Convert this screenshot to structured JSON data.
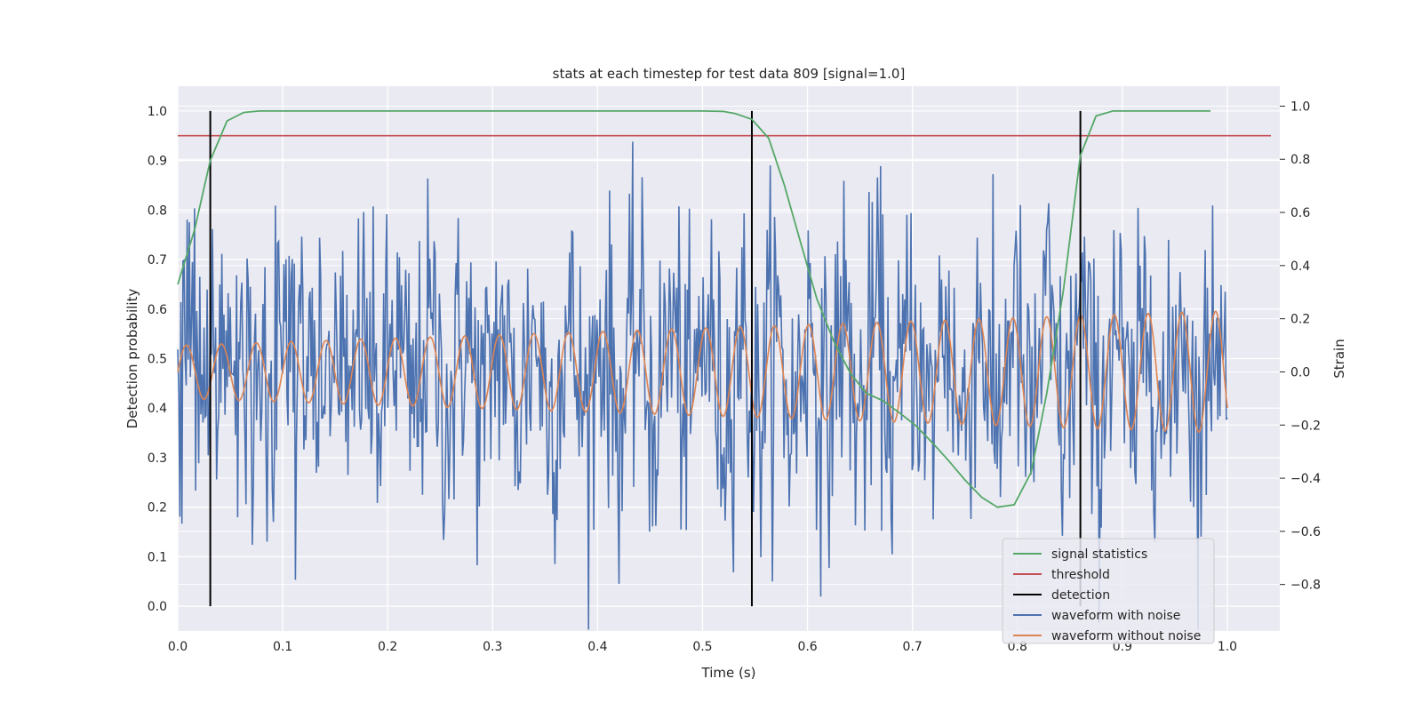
{
  "chart_data": {
    "type": "line",
    "title": "stats at each timestep for test data 809 [signal=1.0]",
    "xlabel": "Time (s)",
    "ylabel": "Detection probability",
    "ylabel_right": "Strain",
    "xlim": [
      0.0,
      1.05
    ],
    "ylim": [
      -0.05,
      1.05
    ],
    "ylim_right": [
      -0.975,
      1.075
    ],
    "xticks": [
      "0.0",
      "0.1",
      "0.2",
      "0.3",
      "0.4",
      "0.5",
      "0.6",
      "0.7",
      "0.8",
      "0.9",
      "1.0"
    ],
    "yticks": [
      "0.0",
      "0.1",
      "0.2",
      "0.3",
      "0.4",
      "0.5",
      "0.6",
      "0.7",
      "0.8",
      "0.9",
      "1.0"
    ],
    "yticks_right": [
      "−0.8",
      "−0.6",
      "−0.4",
      "−0.2",
      "0.0",
      "0.2",
      "0.4",
      "0.6",
      "0.8",
      "1.0"
    ],
    "grid": true,
    "legend_position": "lower-right",
    "threshold": 0.95,
    "detections": [
      0.031,
      0.547,
      0.86
    ],
    "series": [
      {
        "name": "signal statistics",
        "color": "#55a868",
        "axis": "left",
        "x": [
          0.0,
          0.016,
          0.031,
          0.047,
          0.063,
          0.078,
          0.1,
          0.2,
          0.3,
          0.4,
          0.5,
          0.52,
          0.531,
          0.547,
          0.563,
          0.578,
          0.594,
          0.609,
          0.625,
          0.641,
          0.656,
          0.672,
          0.688,
          0.703,
          0.719,
          0.734,
          0.75,
          0.766,
          0.781,
          0.797,
          0.813,
          0.828,
          0.844,
          0.86,
          0.875,
          0.891,
          0.906,
          0.95,
          0.984
        ],
        "y": [
          0.65,
          0.76,
          0.9,
          0.98,
          0.997,
          1.0,
          1.0,
          1.0,
          1.0,
          1.0,
          1.0,
          0.999,
          0.995,
          0.983,
          0.945,
          0.85,
          0.73,
          0.62,
          0.535,
          0.47,
          0.43,
          0.415,
          0.39,
          0.365,
          0.33,
          0.295,
          0.255,
          0.22,
          0.2,
          0.205,
          0.27,
          0.43,
          0.64,
          0.91,
          0.99,
          1.0,
          1.0,
          1.0,
          1.0
        ]
      },
      {
        "name": "waveform with noise",
        "color": "#4c72b0",
        "axis": "right",
        "noise_std": 0.28,
        "n_points": 1000
      },
      {
        "name": "waveform without noise",
        "color": "#dd8452",
        "axis": "right",
        "amplitude_start": 0.1,
        "amplitude_end": 0.23,
        "cycles": 30
      }
    ],
    "legend": [
      {
        "label": "signal statistics",
        "color": "#55a868"
      },
      {
        "label": "threshold",
        "color": "#c44e52"
      },
      {
        "label": "detection",
        "color": "#000000"
      },
      {
        "label": "waveform with noise",
        "color": "#4c72b0"
      },
      {
        "label": "waveform without noise",
        "color": "#dd8452"
      }
    ],
    "colors": {
      "plot_background": "#eaeaf2",
      "grid": "#ffffff",
      "threshold": "#c44e52",
      "detection": "#000000"
    }
  }
}
